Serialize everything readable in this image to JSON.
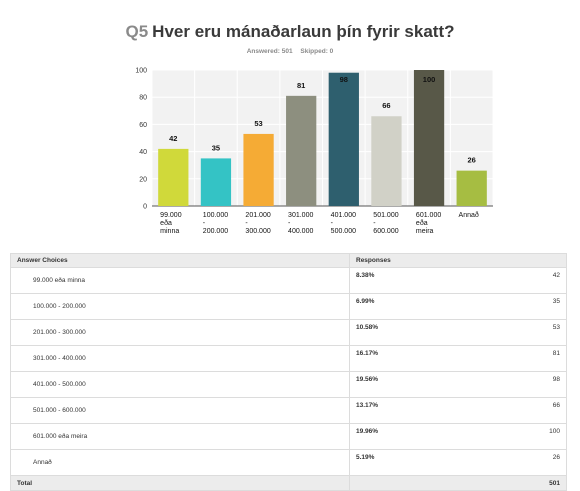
{
  "header": {
    "qnum": "Q5",
    "question": "Hver eru mánaðarlaun þín fyrir skatt?",
    "answered": "Answered: 501",
    "skipped": "Skipped: 0"
  },
  "chart_data": {
    "type": "bar",
    "categories": [
      [
        "99.000",
        "eða",
        "minna"
      ],
      [
        "100.000",
        "-",
        "200.000"
      ],
      [
        "201.000",
        "-",
        "300.000"
      ],
      [
        "301.000",
        "-",
        "400.000"
      ],
      [
        "401.000",
        "-",
        "500.000"
      ],
      [
        "501.000",
        "-",
        "600.000"
      ],
      [
        "601.000",
        "eða",
        "meira"
      ],
      [
        "Annað"
      ]
    ],
    "values": [
      42,
      35,
      53,
      81,
      98,
      66,
      100,
      26
    ],
    "colors": [
      "#d0d93a",
      "#34c3c5",
      "#f5ab35",
      "#8d8f7f",
      "#2e5f6e",
      "#d1d1c7",
      "#585848",
      "#a6bd42"
    ],
    "ylim": [
      0,
      100
    ],
    "yticks": [
      0,
      20,
      40,
      60,
      80,
      100
    ],
    "grid": true
  },
  "table": {
    "headers": [
      "Answer Choices",
      "Responses"
    ],
    "rows": [
      {
        "choice": "99.000 eða minna",
        "pct": "8.38%",
        "count": "42"
      },
      {
        "choice": "100.000 - 200.000",
        "pct": "6.99%",
        "count": "35"
      },
      {
        "choice": "201.000 - 300.000",
        "pct": "10.58%",
        "count": "53"
      },
      {
        "choice": "301.000 - 400.000",
        "pct": "16.17%",
        "count": "81"
      },
      {
        "choice": "401.000 - 500.000",
        "pct": "19.56%",
        "count": "98"
      },
      {
        "choice": "501.000 - 600.000",
        "pct": "13.17%",
        "count": "66"
      },
      {
        "choice": "601.000 eða meira",
        "pct": "19.96%",
        "count": "100"
      },
      {
        "choice": "Annað",
        "pct": "5.19%",
        "count": "26"
      }
    ],
    "total_label": "Total",
    "total_value": "501"
  }
}
